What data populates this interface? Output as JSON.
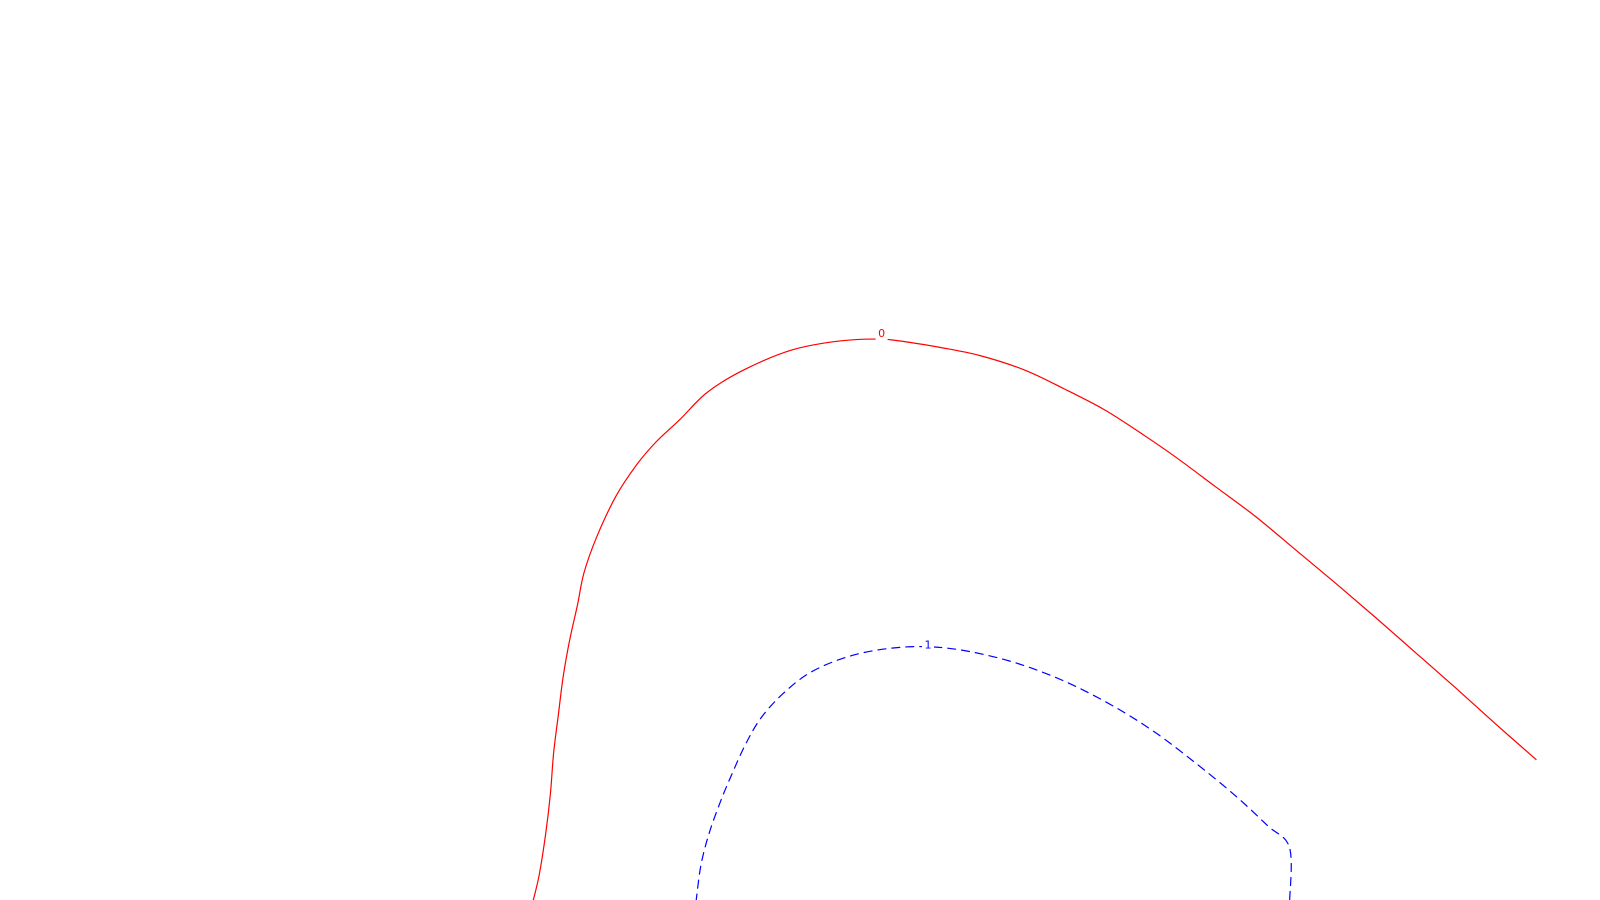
{
  "chart_data": {
    "type": "contour",
    "title": "",
    "xlabel": "",
    "ylabel": "",
    "grid": false,
    "legend": "none",
    "levels": [
      {
        "value": 0,
        "label": "0",
        "color": "#ff0000",
        "line_style": "solid",
        "points": [
          [
            0.333,
            0.0
          ],
          [
            0.337,
            0.03
          ],
          [
            0.341,
            0.075
          ],
          [
            0.344,
            0.12
          ],
          [
            0.346,
            0.165
          ],
          [
            0.349,
            0.208
          ],
          [
            0.352,
            0.25
          ],
          [
            0.356,
            0.29
          ],
          [
            0.361,
            0.33
          ],
          [
            0.365,
            0.365
          ],
          [
            0.373,
            0.405
          ],
          [
            0.385,
            0.45
          ],
          [
            0.398,
            0.485
          ],
          [
            0.41,
            0.51
          ],
          [
            0.425,
            0.535
          ],
          [
            0.442,
            0.565
          ],
          [
            0.465,
            0.59
          ],
          [
            0.495,
            0.612
          ],
          [
            0.525,
            0.622
          ],
          [
            0.551,
            0.624
          ],
          [
            0.57,
            0.62
          ],
          [
            0.587,
            0.615
          ],
          [
            0.612,
            0.606
          ],
          [
            0.64,
            0.59
          ],
          [
            0.665,
            0.569
          ],
          [
            0.69,
            0.546
          ],
          [
            0.712,
            0.521
          ],
          [
            0.735,
            0.493
          ],
          [
            0.76,
            0.46
          ],
          [
            0.785,
            0.427
          ],
          [
            0.81,
            0.39
          ],
          [
            0.835,
            0.353
          ],
          [
            0.86,
            0.315
          ],
          [
            0.885,
            0.276
          ],
          [
            0.91,
            0.237
          ],
          [
            0.935,
            0.197
          ],
          [
            0.96,
            0.158
          ]
        ]
      },
      {
        "value": 1,
        "label": "1",
        "color": "#0000ff",
        "line_style": "dashed",
        "points": [
          [
            0.435,
            0.0
          ],
          [
            0.438,
            0.04
          ],
          [
            0.443,
            0.075
          ],
          [
            0.45,
            0.11
          ],
          [
            0.457,
            0.14
          ],
          [
            0.466,
            0.175
          ],
          [
            0.476,
            0.205
          ],
          [
            0.49,
            0.232
          ],
          [
            0.507,
            0.255
          ],
          [
            0.53,
            0.272
          ],
          [
            0.555,
            0.281
          ],
          [
            0.58,
            0.283
          ],
          [
            0.605,
            0.278
          ],
          [
            0.635,
            0.265
          ],
          [
            0.665,
            0.245
          ],
          [
            0.695,
            0.218
          ],
          [
            0.722,
            0.188
          ],
          [
            0.748,
            0.153
          ],
          [
            0.772,
            0.118
          ],
          [
            0.792,
            0.085
          ],
          [
            0.806,
            0.06
          ],
          [
            0.806,
            0.0
          ]
        ]
      }
    ]
  }
}
